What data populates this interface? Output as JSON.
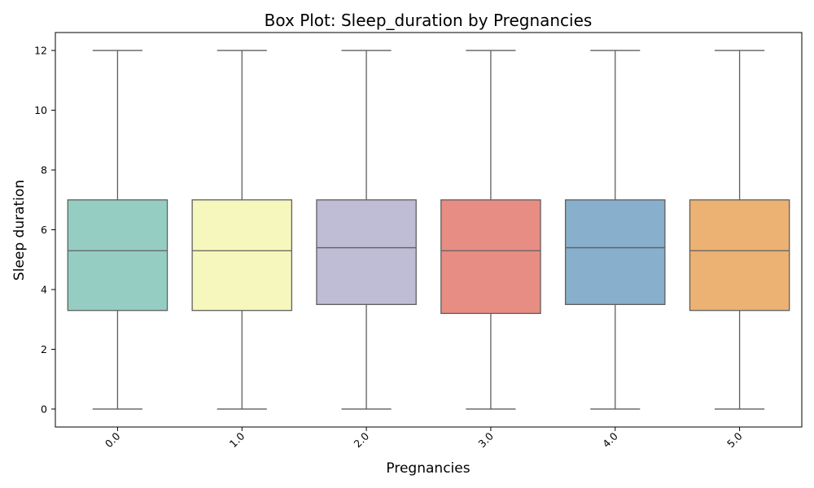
{
  "chart_data": {
    "type": "box",
    "title": "Box Plot: Sleep_duration by Pregnancies",
    "xlabel": "Pregnancies",
    "ylabel": "Sleep duration",
    "ylim": [
      -0.6,
      12.6
    ],
    "yticks": [
      0,
      2,
      4,
      6,
      8,
      10,
      12
    ],
    "grid": false,
    "categories": [
      "0.0",
      "1.0",
      "2.0",
      "3.0",
      "4.0",
      "5.0"
    ],
    "boxes": [
      {
        "category": "0.0",
        "min": 0,
        "q1": 3.3,
        "median": 5.3,
        "q3": 7.0,
        "max": 12,
        "color": "#96cdc3"
      },
      {
        "category": "1.0",
        "min": 0,
        "q1": 3.3,
        "median": 5.3,
        "q3": 7.0,
        "max": 12,
        "color": "#f6f7bc"
      },
      {
        "category": "2.0",
        "min": 0,
        "q1": 3.5,
        "median": 5.4,
        "q3": 7.0,
        "max": 12,
        "color": "#bfbcd6"
      },
      {
        "category": "3.0",
        "min": 0,
        "q1": 3.2,
        "median": 5.3,
        "q3": 7.0,
        "max": 12,
        "color": "#e88d83"
      },
      {
        "category": "4.0",
        "min": 0,
        "q1": 3.5,
        "median": 5.4,
        "q3": 7.0,
        "max": 12,
        "color": "#88afcb"
      },
      {
        "category": "5.0",
        "min": 0,
        "q1": 3.3,
        "median": 5.3,
        "q3": 7.0,
        "max": 12,
        "color": "#ebb273"
      }
    ],
    "line_color": "#5f5f5f"
  }
}
